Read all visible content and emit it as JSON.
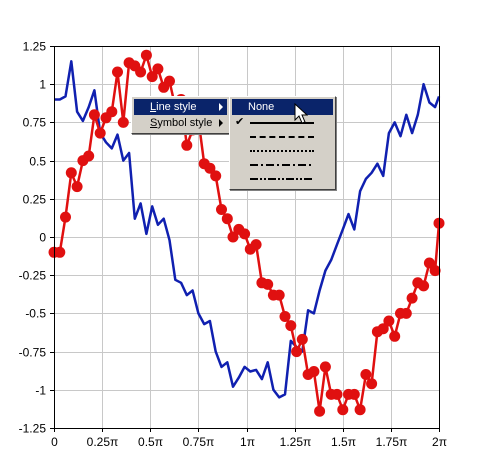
{
  "chart_data": {
    "type": "line",
    "x_ticks": [
      "0",
      "0.25π",
      "0.5π",
      "0.75π",
      "1π",
      "1.25π",
      "1.5π",
      "1.75π",
      "2π"
    ],
    "y_ticks": [
      "1.25",
      "1",
      "0.75",
      "0.5",
      "0.25",
      "0",
      "-0.25",
      "-0.5",
      "-0.75",
      "-1",
      "-1.25"
    ],
    "xlim": [
      0,
      2
    ],
    "ylim": [
      -1.25,
      1.25
    ],
    "x_unit": "π",
    "grid": true,
    "series": [
      {
        "color": "#1020b0",
        "marker": "none",
        "points": [
          [
            0.0,
            0.9
          ],
          [
            0.03,
            0.9
          ],
          [
            0.06,
            0.92
          ],
          [
            0.09,
            1.15
          ],
          [
            0.12,
            0.82
          ],
          [
            0.15,
            0.76
          ],
          [
            0.18,
            0.85
          ],
          [
            0.21,
            0.96
          ],
          [
            0.24,
            0.68
          ],
          [
            0.27,
            0.62
          ],
          [
            0.3,
            0.58
          ],
          [
            0.33,
            0.67
          ],
          [
            0.36,
            0.5
          ],
          [
            0.39,
            0.55
          ],
          [
            0.42,
            0.12
          ],
          [
            0.45,
            0.22
          ],
          [
            0.48,
            0.02
          ],
          [
            0.51,
            0.2
          ],
          [
            0.54,
            0.08
          ],
          [
            0.57,
            0.12
          ],
          [
            0.6,
            -0.02
          ],
          [
            0.63,
            -0.28
          ],
          [
            0.66,
            -0.3
          ],
          [
            0.69,
            -0.38
          ],
          [
            0.72,
            -0.35
          ],
          [
            0.75,
            -0.5
          ],
          [
            0.78,
            -0.57
          ],
          [
            0.81,
            -0.55
          ],
          [
            0.84,
            -0.75
          ],
          [
            0.87,
            -0.85
          ],
          [
            0.9,
            -0.82
          ],
          [
            0.93,
            -0.98
          ],
          [
            0.96,
            -0.92
          ],
          [
            0.99,
            -0.85
          ],
          [
            1.02,
            -0.88
          ],
          [
            1.05,
            -0.87
          ],
          [
            1.08,
            -0.93
          ],
          [
            1.11,
            -0.82
          ],
          [
            1.14,
            -1.0
          ],
          [
            1.17,
            -1.05
          ],
          [
            1.2,
            -1.03
          ],
          [
            1.23,
            -0.68
          ],
          [
            1.26,
            -0.72
          ],
          [
            1.29,
            -0.75
          ],
          [
            1.32,
            -0.48
          ],
          [
            1.35,
            -0.5
          ],
          [
            1.38,
            -0.35
          ],
          [
            1.41,
            -0.22
          ],
          [
            1.44,
            -0.15
          ],
          [
            1.47,
            -0.05
          ],
          [
            1.5,
            0.05
          ],
          [
            1.53,
            0.15
          ],
          [
            1.56,
            0.05
          ],
          [
            1.59,
            0.3
          ],
          [
            1.62,
            0.38
          ],
          [
            1.65,
            0.42
          ],
          [
            1.68,
            0.48
          ],
          [
            1.71,
            0.4
          ],
          [
            1.74,
            0.68
          ],
          [
            1.77,
            0.75
          ],
          [
            1.8,
            0.66
          ],
          [
            1.83,
            0.8
          ],
          [
            1.86,
            0.68
          ],
          [
            1.89,
            0.8
          ],
          [
            1.92,
            1.0
          ],
          [
            1.95,
            0.88
          ],
          [
            1.98,
            0.85
          ],
          [
            2.0,
            0.92
          ]
        ]
      },
      {
        "color": "#e01010",
        "marker": "circle",
        "points": [
          [
            0.0,
            -0.1
          ],
          [
            0.03,
            -0.1
          ],
          [
            0.06,
            0.13
          ],
          [
            0.09,
            0.42
          ],
          [
            0.12,
            0.33
          ],
          [
            0.15,
            0.5
          ],
          [
            0.18,
            0.53
          ],
          [
            0.21,
            0.8
          ],
          [
            0.24,
            0.68
          ],
          [
            0.27,
            0.78
          ],
          [
            0.3,
            0.82
          ],
          [
            0.33,
            1.08
          ],
          [
            0.36,
            0.75
          ],
          [
            0.39,
            1.14
          ],
          [
            0.42,
            1.12
          ],
          [
            0.45,
            1.08
          ],
          [
            0.48,
            1.19
          ],
          [
            0.51,
            1.05
          ],
          [
            0.54,
            1.1
          ],
          [
            0.57,
            0.98
          ],
          [
            0.6,
            1.02
          ],
          [
            0.63,
            0.85
          ],
          [
            0.66,
            0.9
          ],
          [
            0.69,
            0.6
          ],
          [
            0.72,
            0.7
          ],
          [
            0.75,
            0.77
          ],
          [
            0.78,
            0.48
          ],
          [
            0.81,
            0.45
          ],
          [
            0.84,
            0.4
          ],
          [
            0.87,
            0.18
          ],
          [
            0.9,
            0.12
          ],
          [
            0.93,
            0.0
          ],
          [
            0.96,
            0.05
          ],
          [
            0.99,
            0.02
          ],
          [
            1.02,
            -0.08
          ],
          [
            1.05,
            -0.05
          ],
          [
            1.08,
            -0.3
          ],
          [
            1.11,
            -0.31
          ],
          [
            1.14,
            -0.38
          ],
          [
            1.17,
            -0.38
          ],
          [
            1.2,
            -0.52
          ],
          [
            1.23,
            -0.58
          ],
          [
            1.26,
            -0.75
          ],
          [
            1.29,
            -0.67
          ],
          [
            1.32,
            -0.9
          ],
          [
            1.35,
            -0.88
          ],
          [
            1.38,
            -1.14
          ],
          [
            1.41,
            -0.85
          ],
          [
            1.44,
            -1.03
          ],
          [
            1.47,
            -1.03
          ],
          [
            1.5,
            -1.13
          ],
          [
            1.53,
            -1.03
          ],
          [
            1.56,
            -1.03
          ],
          [
            1.59,
            -1.13
          ],
          [
            1.62,
            -0.9
          ],
          [
            1.65,
            -0.96
          ],
          [
            1.68,
            -0.62
          ],
          [
            1.71,
            -0.6
          ],
          [
            1.74,
            -0.55
          ],
          [
            1.77,
            -0.65
          ],
          [
            1.8,
            -0.5
          ],
          [
            1.83,
            -0.5
          ],
          [
            1.86,
            -0.4
          ],
          [
            1.89,
            -0.3
          ],
          [
            1.92,
            -0.32
          ],
          [
            1.95,
            -0.17
          ],
          [
            1.98,
            -0.22
          ],
          [
            2.0,
            0.09
          ]
        ]
      }
    ]
  },
  "context_menu": {
    "items": [
      {
        "label": "Line style",
        "mnemonic": "L",
        "rest": "ine style",
        "highlighted": true,
        "has_submenu": true
      },
      {
        "label": "Symbol style",
        "mnemonic": "S",
        "rest": "ymbol style",
        "highlighted": false,
        "has_submenu": true
      }
    ]
  },
  "line_style_submenu": {
    "items": [
      {
        "label": "None",
        "style": "none",
        "highlighted": true,
        "checked": false
      },
      {
        "label": "",
        "style": "solid",
        "highlighted": false,
        "checked": true
      },
      {
        "label": "",
        "style": "dash",
        "highlighted": false,
        "checked": false
      },
      {
        "label": "",
        "style": "dot",
        "highlighted": false,
        "checked": false
      },
      {
        "label": "",
        "style": "dash-dot",
        "highlighted": false,
        "checked": false
      },
      {
        "label": "",
        "style": "dash-dot-dot",
        "highlighted": false,
        "checked": false
      }
    ]
  },
  "icons": {
    "cursor": "arrow-cursor-icon",
    "submenu_arrow": "chevron-right-icon",
    "check": "check-icon"
  }
}
